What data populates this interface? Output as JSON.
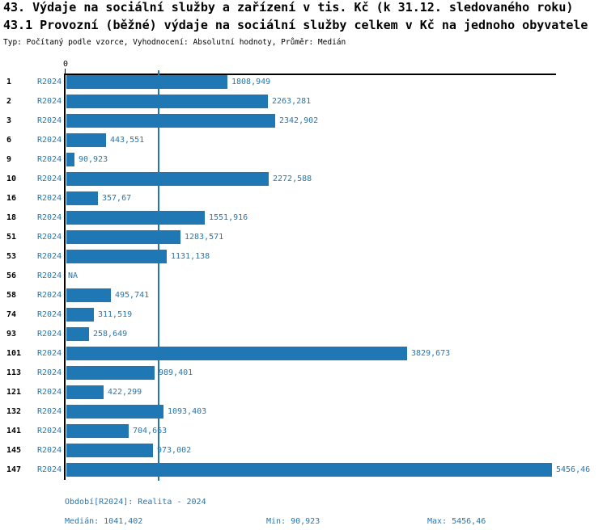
{
  "header": {
    "title_line1": "43. Výdaje na sociální služby a zařízení v tis. Kč (k 31.12. sledovaného roku)",
    "title_line2": "43.1 Provozní (běžné) výdaje na sociální služby celkem v Kč na jednoho obyvatele",
    "subtitle": "Typ: Počítaný podle vzorce, Vyhodnocení: Absolutní hodnoty, Průměr: Medián"
  },
  "chart_data": {
    "type": "bar",
    "orientation": "horizontal",
    "series_label": "R2024",
    "categories": [
      "1",
      "2",
      "3",
      "6",
      "9",
      "10",
      "16",
      "18",
      "51",
      "53",
      "56",
      "58",
      "74",
      "93",
      "101",
      "113",
      "121",
      "132",
      "141",
      "145",
      "147"
    ],
    "values": [
      1808.949,
      2263.281,
      2342.902,
      443.551,
      90.923,
      2272.588,
      357.67,
      1551.916,
      1283.571,
      1131.138,
      null,
      495.741,
      311.519,
      258.649,
      3829.673,
      989.401,
      422.299,
      1093.403,
      704.663,
      973.002,
      5456.46
    ],
    "value_labels": [
      "1808,949",
      "2263,281",
      "2342,902",
      "443,551",
      "90,923",
      "2272,588",
      "357,67",
      "1551,916",
      "1283,571",
      "1131,138",
      "NA",
      "495,741",
      "311,519",
      "258,649",
      "3829,673",
      "989,401",
      "422,299",
      "1093,403",
      "704,663",
      "973,002",
      "5456,46"
    ],
    "axis": {
      "zero_label": "0",
      "xlim": [
        0,
        5520
      ],
      "grid": false,
      "median_value": 1041.402
    },
    "median": 1041.402,
    "min": 90.923,
    "max": 5456.46
  },
  "footer": {
    "period": "Období[R2024]: Realita - 2024",
    "median": "Medián: 1041,402",
    "min": "Min: 90,923",
    "max": "Max: 5456,46"
  },
  "colors": {
    "bar": "#1f77b4",
    "blue_text": "#1f77b4",
    "axis": "#000000"
  }
}
